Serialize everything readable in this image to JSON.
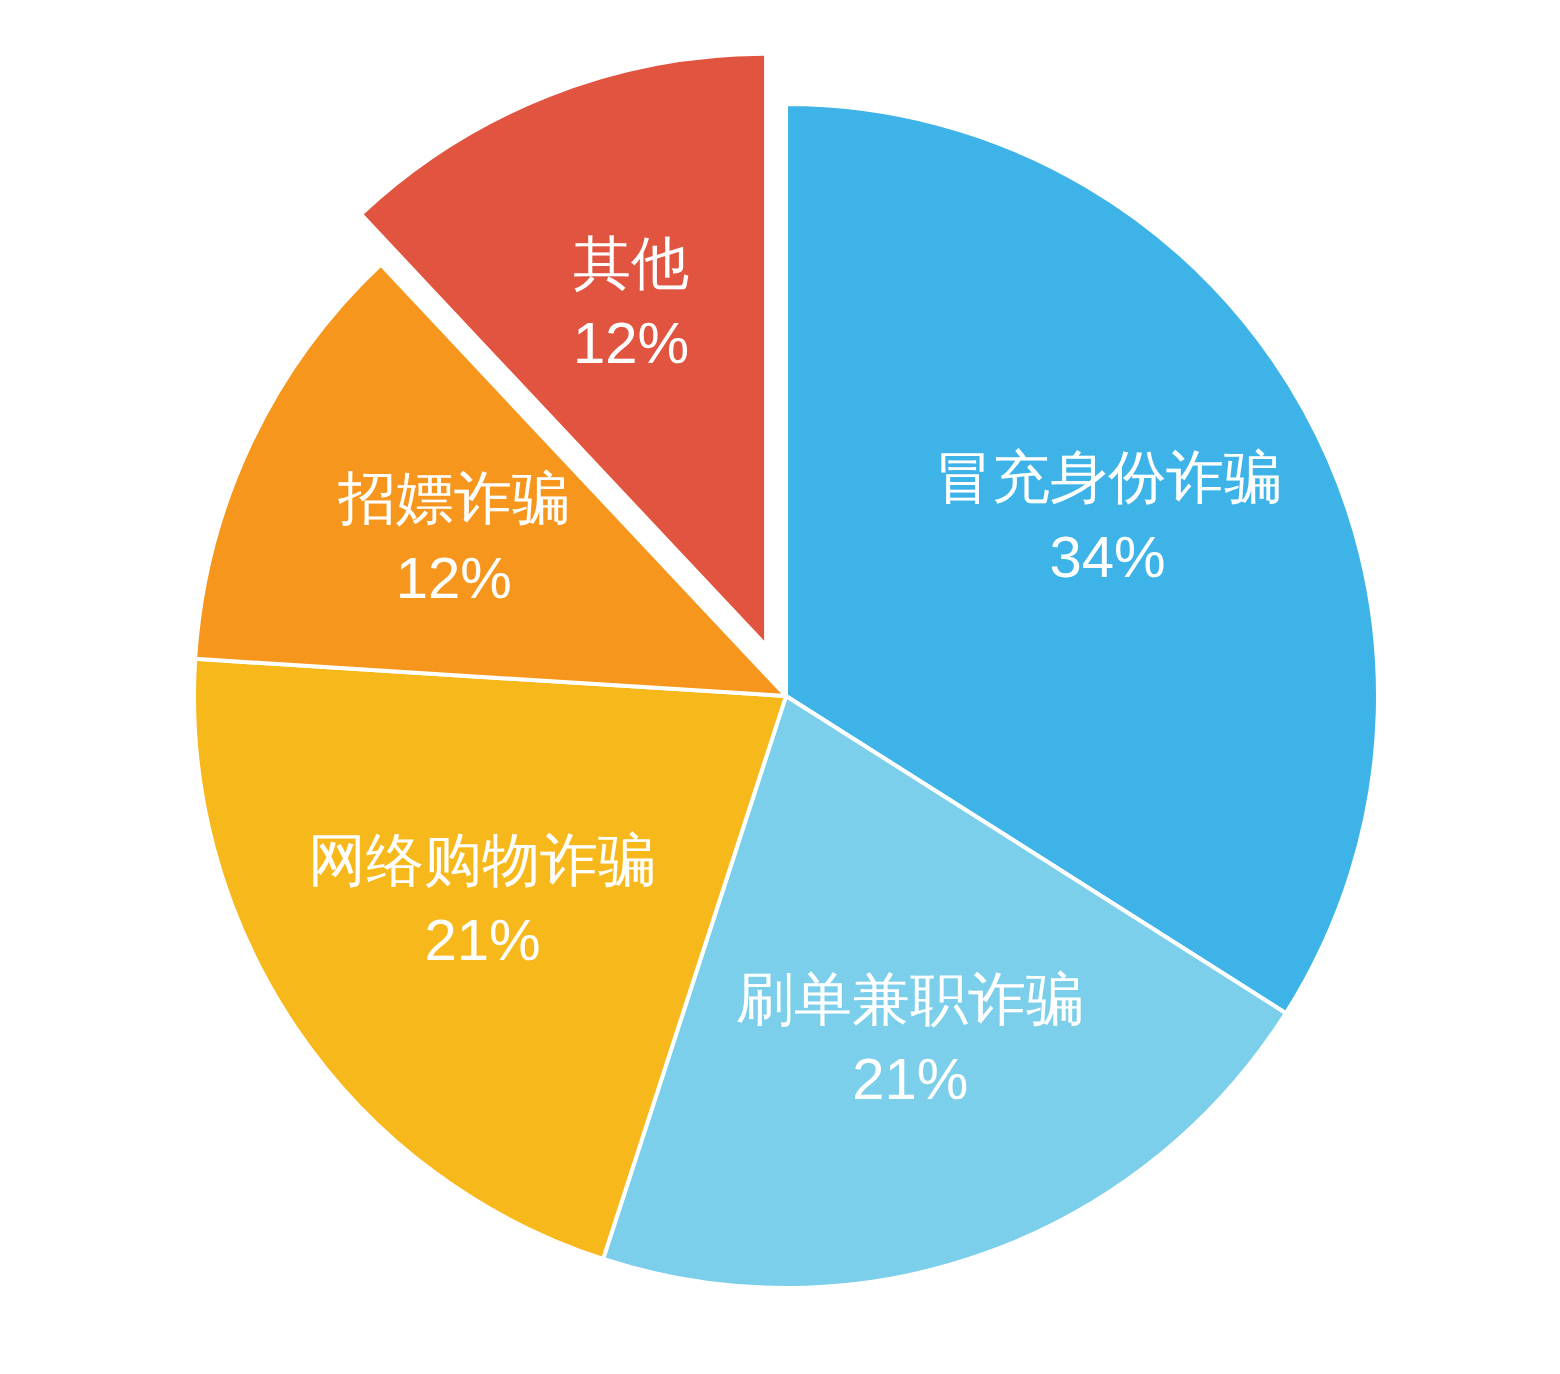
{
  "chart_data": {
    "type": "pie",
    "categories": [
      "冒充身份诈骗",
      "刷单兼职诈骗",
      "网络购物诈骗",
      "招嫖诈骗",
      "其他"
    ],
    "values": [
      34,
      21,
      21,
      12,
      12
    ],
    "value_labels": [
      "34%",
      "21%",
      "21%",
      "12%",
      "12%"
    ],
    "colors": [
      "#3db3e8",
      "#7bcfea",
      "#f7b81b",
      "#f7961d",
      "#e05440"
    ]
  }
}
